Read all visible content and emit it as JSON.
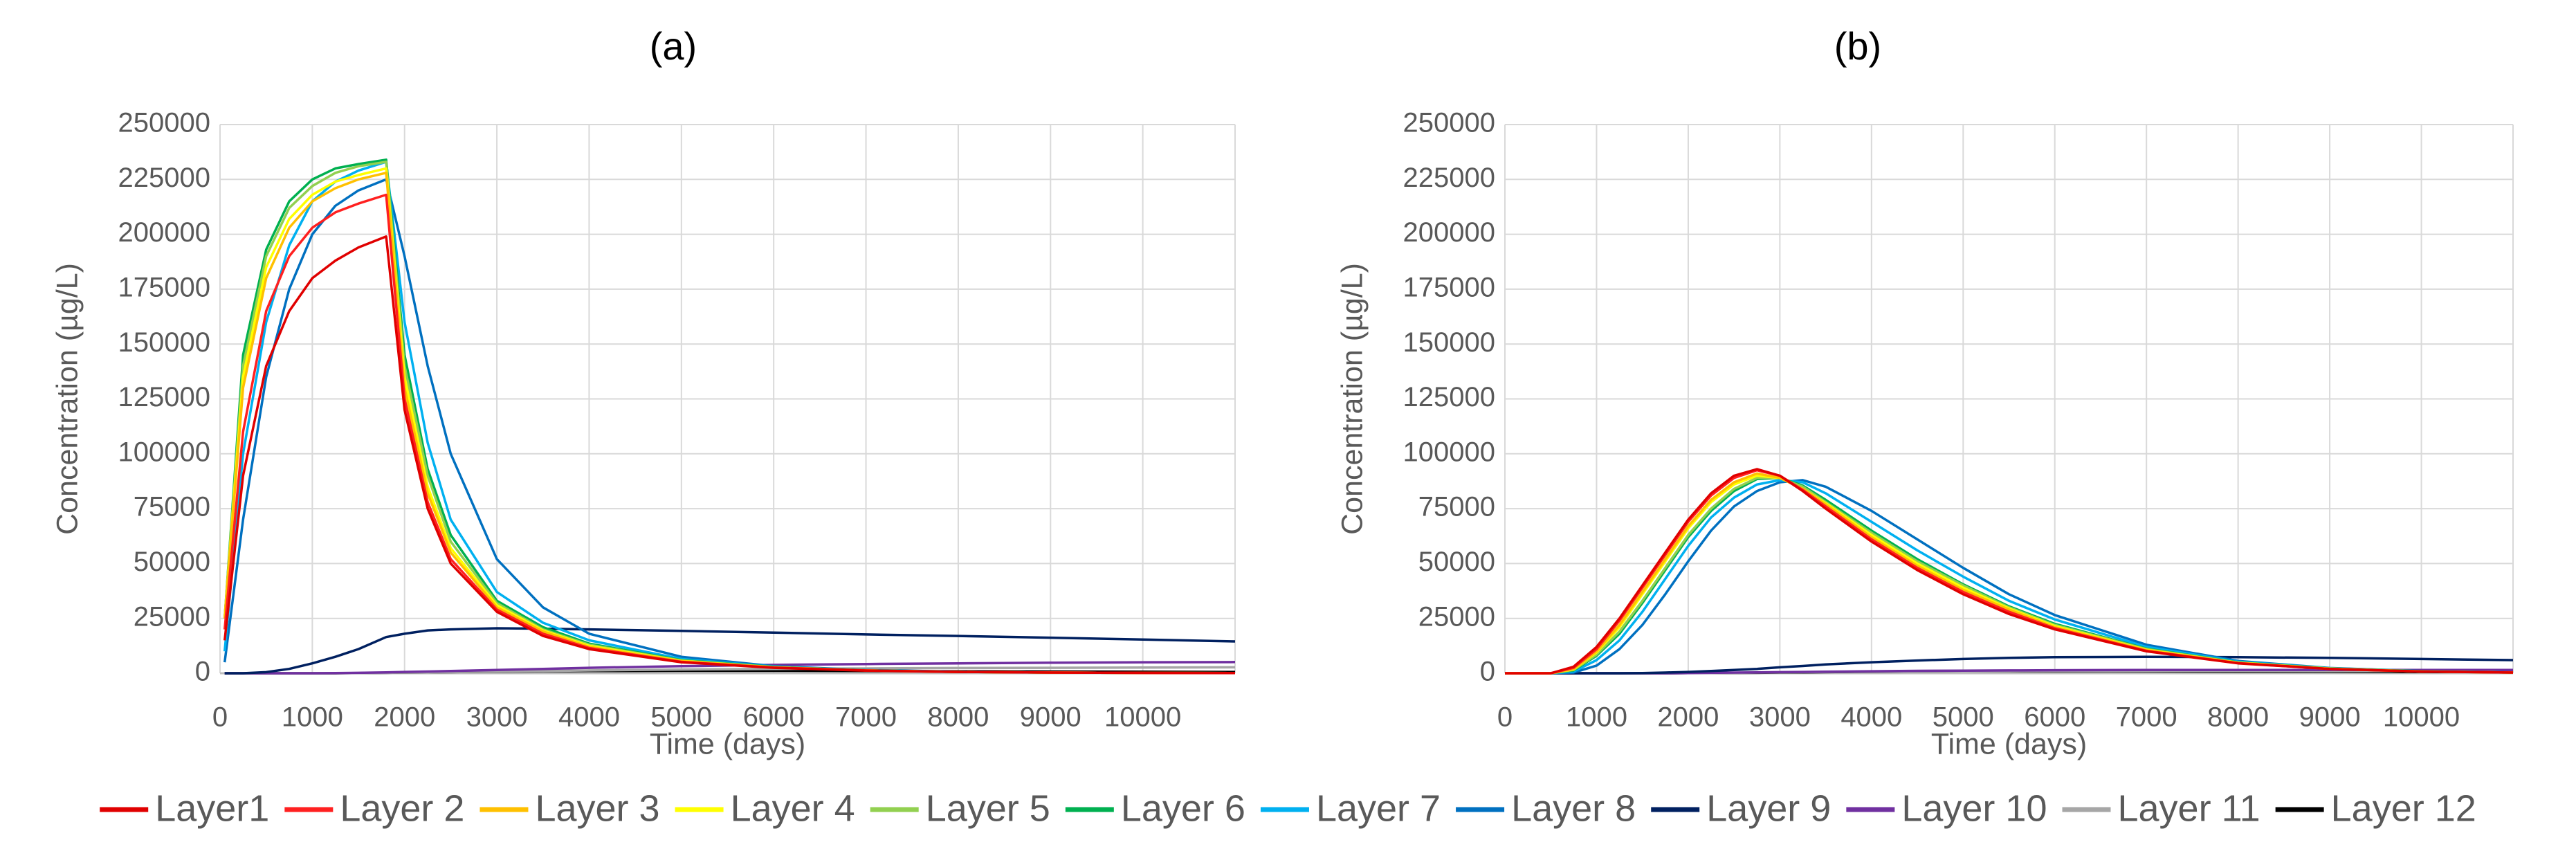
{
  "chart_data": [
    {
      "type": "line",
      "title": "(a)",
      "xlabel": "Time (days)",
      "ylabel": "Concentration (µg/L)",
      "x": [
        50,
        250,
        500,
        750,
        1000,
        1250,
        1500,
        1800,
        2000,
        2250,
        2500,
        3000,
        3500,
        4000,
        5000,
        6000,
        7000,
        8000,
        9000,
        10000,
        11000
      ],
      "xlim": [
        0,
        11000
      ],
      "ylim": [
        0,
        250000
      ],
      "xticks": [
        0,
        1000,
        2000,
        3000,
        4000,
        5000,
        6000,
        7000,
        8000,
        9000,
        10000
      ],
      "yticks": [
        0,
        25000,
        50000,
        75000,
        100000,
        125000,
        150000,
        175000,
        200000,
        225000,
        250000
      ],
      "grid": true,
      "series": [
        {
          "name": "Layer1",
          "color": "#e00000",
          "values": [
            15000,
            90000,
            140000,
            165000,
            180000,
            188000,
            194000,
            199000,
            120000,
            75000,
            50000,
            28000,
            17000,
            11000,
            5000,
            2500,
            1200,
            600,
            300,
            150,
            100
          ]
        },
        {
          "name": "Layer 2",
          "color": "#ff2020",
          "values": [
            20000,
            110000,
            165000,
            190000,
            203000,
            210000,
            214000,
            218000,
            125000,
            78000,
            52000,
            29000,
            18000,
            11500,
            5200,
            2600,
            1300,
            600,
            300,
            150,
            100
          ]
        },
        {
          "name": "Layer 3",
          "color": "#ffc000",
          "values": [
            25000,
            130000,
            180000,
            203000,
            215000,
            221000,
            225000,
            228000,
            130000,
            82000,
            55000,
            30000,
            19000,
            12000,
            5500,
            2700,
            1300,
            600,
            300,
            150,
            100
          ]
        },
        {
          "name": "Layer 4",
          "color": "#ffff00",
          "values": [
            25000,
            135000,
            185000,
            207000,
            218000,
            224000,
            227000,
            230000,
            135000,
            85000,
            57000,
            31000,
            19500,
            12500,
            5600,
            2700,
            1300,
            600,
            300,
            150,
            100
          ]
        },
        {
          "name": "Layer 5",
          "color": "#92d050",
          "values": [
            25000,
            140000,
            190000,
            212000,
            222000,
            228000,
            231000,
            233000,
            140000,
            90000,
            60000,
            32000,
            20000,
            13000,
            5800,
            2800,
            1300,
            600,
            300,
            150,
            100
          ]
        },
        {
          "name": "Layer 6",
          "color": "#00b050",
          "values": [
            25000,
            145000,
            193000,
            215000,
            225000,
            230000,
            232000,
            234000,
            145000,
            93000,
            63000,
            33000,
            21000,
            13500,
            6000,
            2900,
            1400,
            600,
            300,
            150,
            100
          ]
        },
        {
          "name": "Layer 7",
          "color": "#00b0f0",
          "values": [
            10000,
            100000,
            160000,
            195000,
            215000,
            224000,
            229000,
            233000,
            160000,
            105000,
            70000,
            37000,
            23000,
            15000,
            6500,
            3000,
            1400,
            600,
            300,
            150,
            100
          ]
        },
        {
          "name": "Layer 8",
          "color": "#0070c0",
          "values": [
            5000,
            70000,
            135000,
            175000,
            200000,
            213000,
            220000,
            225000,
            190000,
            140000,
            100000,
            52000,
            30000,
            18000,
            7500,
            3200,
            1500,
            700,
            300,
            150,
            100
          ]
        },
        {
          "name": "Layer 9",
          "color": "#002060",
          "values": [
            0,
            0,
            500,
            2000,
            4500,
            7500,
            11000,
            16500,
            18000,
            19500,
            20000,
            20500,
            20300,
            20000,
            19300,
            18500,
            17700,
            17000,
            16200,
            15400,
            14500
          ]
        },
        {
          "name": "Layer 10",
          "color": "#7030a0",
          "values": [
            0,
            0,
            0,
            0,
            0,
            100,
            200,
            400,
            600,
            800,
            1000,
            1500,
            2000,
            2500,
            3200,
            3800,
            4200,
            4500,
            4800,
            5000,
            5100
          ]
        },
        {
          "name": "Layer 11",
          "color": "#a6a6a6",
          "values": [
            0,
            0,
            0,
            0,
            0,
            50,
            100,
            200,
            300,
            400,
            500,
            800,
            1000,
            1300,
            1700,
            2000,
            2200,
            2400,
            2500,
            2600,
            2700
          ]
        },
        {
          "name": "Layer 12",
          "color": "#000000",
          "values": [
            0,
            0,
            0,
            0,
            0,
            0,
            100,
            200,
            300,
            400,
            500,
            700,
            900,
            1000,
            1100,
            1100,
            1000,
            900,
            800,
            700,
            600
          ]
        }
      ]
    },
    {
      "type": "line",
      "title": "(b)",
      "xlabel": "Time (days)",
      "ylabel": "Concentration (µg/L)",
      "x": [
        0,
        500,
        750,
        1000,
        1250,
        1500,
        1750,
        2000,
        2250,
        2500,
        2750,
        3000,
        3250,
        3500,
        4000,
        4500,
        5000,
        5500,
        6000,
        7000,
        8000,
        9000,
        10000,
        11000
      ],
      "xlim": [
        0,
        11000
      ],
      "ylim": [
        0,
        250000
      ],
      "xticks": [
        0,
        1000,
        2000,
        3000,
        4000,
        5000,
        6000,
        7000,
        8000,
        9000,
        10000
      ],
      "yticks": [
        0,
        25000,
        50000,
        75000,
        100000,
        125000,
        150000,
        175000,
        200000,
        225000,
        250000
      ],
      "grid": true,
      "series": [
        {
          "values": [
            0,
            0,
            3000,
            12000,
            25000,
            40000,
            55000,
            70000,
            82000,
            90000,
            93000,
            90000,
            83000,
            75000,
            60000,
            47000,
            36000,
            27000,
            20000,
            10000,
            4500,
            2000,
            800,
            300
          ]
        },
        {
          "values": [
            0,
            0,
            2500,
            11000,
            24000,
            39000,
            54000,
            69000,
            81000,
            89000,
            92500,
            90000,
            83500,
            76000,
            61000,
            48000,
            37000,
            28000,
            20500,
            10200,
            4600,
            2000,
            800,
            300
          ]
        },
        {
          "values": [
            0,
            0,
            2000,
            10000,
            22000,
            37000,
            52000,
            67000,
            79000,
            87000,
            91000,
            89000,
            84000,
            77000,
            62000,
            49000,
            38000,
            29000,
            21000,
            10500,
            4700,
            2000,
            800,
            300
          ]
        },
        {
          "values": [
            0,
            0,
            1800,
            9500,
            21000,
            36000,
            51000,
            66000,
            78000,
            86000,
            90000,
            89000,
            84000,
            77500,
            63000,
            50000,
            39000,
            29500,
            21500,
            10700,
            4800,
            2100,
            800,
            300
          ]
        },
        {
          "values": [
            0,
            0,
            1500,
            8500,
            19000,
            33000,
            48000,
            63000,
            75000,
            84000,
            89000,
            89000,
            85000,
            78000,
            64000,
            51000,
            40000,
            30000,
            22000,
            11000,
            4900,
            2100,
            900,
            300
          ]
        },
        {
          "values": [
            0,
            0,
            1300,
            8000,
            18000,
            32000,
            47000,
            62000,
            74000,
            83000,
            88500,
            89000,
            85500,
            79000,
            65000,
            52000,
            40500,
            30500,
            22500,
            11200,
            5000,
            2200,
            900,
            300
          ]
        },
        {
          "values": [
            0,
            0,
            800,
            6000,
            15000,
            28000,
            43000,
            58000,
            71000,
            80000,
            86000,
            88000,
            87000,
            82000,
            69000,
            56000,
            44000,
            33000,
            24500,
            12000,
            5300,
            2300,
            900,
            300
          ]
        },
        {
          "values": [
            0,
            0,
            300,
            3500,
            11000,
            22000,
            36000,
            51000,
            65000,
            76000,
            83000,
            87000,
            88000,
            85000,
            74000,
            61000,
            48000,
            36000,
            26500,
            13000,
            5600,
            2400,
            1000,
            400
          ]
        },
        {
          "values": [
            0,
            0,
            0,
            0,
            0,
            100,
            300,
            600,
            1000,
            1500,
            2000,
            2700,
            3300,
            4000,
            5000,
            5800,
            6500,
            7000,
            7300,
            7500,
            7300,
            7000,
            6500,
            6000
          ]
        },
        {
          "values": [
            0,
            0,
            0,
            0,
            0,
            0,
            0,
            100,
            200,
            300,
            400,
            500,
            600,
            700,
            900,
            1100,
            1200,
            1300,
            1400,
            1500,
            1500,
            1500,
            1500,
            1500
          ]
        },
        {
          "values": [
            0,
            0,
            0,
            0,
            0,
            0,
            0,
            50,
            100,
            200,
            300,
            400,
            500,
            600,
            800,
            900,
            1000,
            1100,
            1100,
            1100,
            1100,
            1000,
            1000,
            1000
          ]
        },
        {
          "values": [
            0,
            0,
            0,
            0,
            0,
            0,
            0,
            50,
            100,
            150,
            200,
            300,
            400,
            500,
            700,
            900,
            1000,
            1000,
            950,
            900,
            800,
            700,
            600,
            500
          ]
        }
      ]
    }
  ]
}
